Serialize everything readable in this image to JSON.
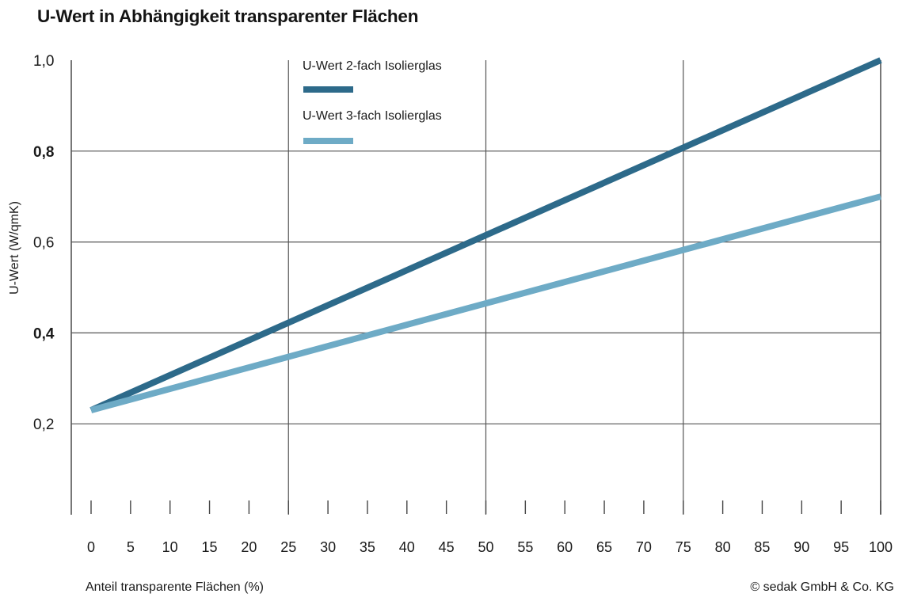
{
  "chart_data": {
    "type": "line",
    "title": "U-Wert in Abhängigkeit transparenter Flächen",
    "xlabel": "Anteil transparente Flächen (%)",
    "ylabel": "U-Wert (W/qmK)",
    "x_ticks": [
      "0",
      "5",
      "10",
      "15",
      "20",
      "25",
      "30",
      "35",
      "40",
      "45",
      "50",
      "55",
      "60",
      "65",
      "70",
      "75",
      "80",
      "85",
      "90",
      "95",
      "100"
    ],
    "y_ticks": [
      "1,0",
      "0,8",
      "0,6",
      "0,4",
      "0,2"
    ],
    "y_ticks_bold": [
      "0,8",
      "0,4"
    ],
    "xlim": [
      0,
      100
    ],
    "ylim": [
      0.0,
      1.0
    ],
    "grid": true,
    "legend_position": "top",
    "series": [
      {
        "name": "U-Wert 2-fach Isolierglas",
        "color": "#2d6a8a",
        "x": [
          0,
          100
        ],
        "y": [
          0.23,
          1.0
        ]
      },
      {
        "name": "U-Wert 3-fach Isolierglas",
        "color": "#6eabc6",
        "x": [
          0,
          100
        ],
        "y": [
          0.23,
          0.7
        ]
      }
    ]
  },
  "copyright": "© sedak GmbH & Co. KG"
}
